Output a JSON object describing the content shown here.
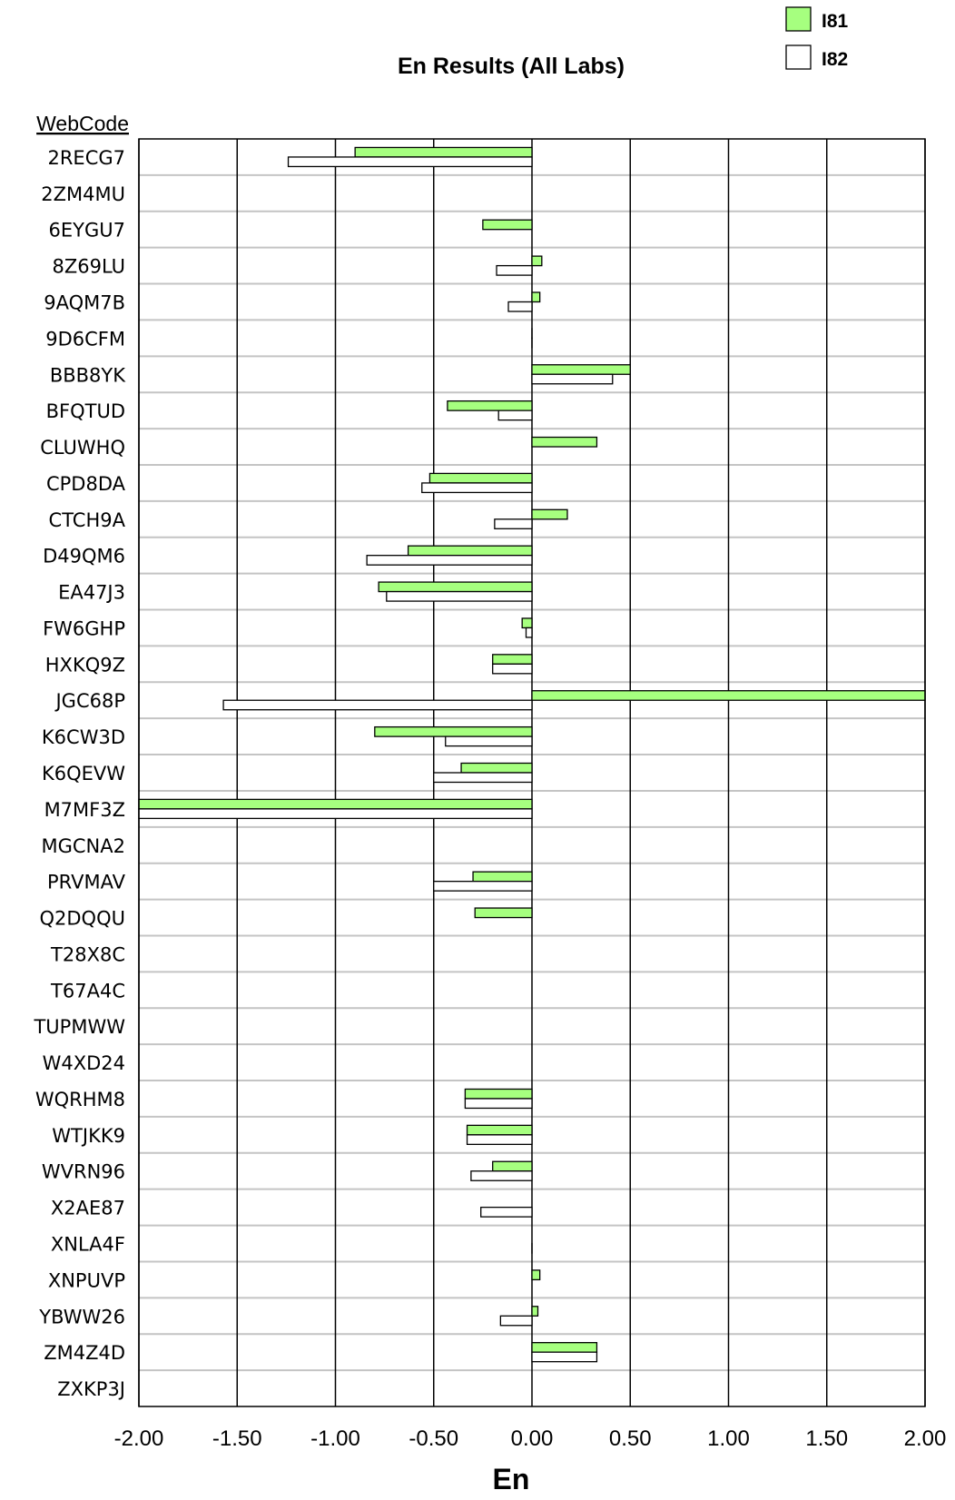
{
  "chart_data": {
    "type": "bar",
    "orientation": "horizontal",
    "title": "En Results (All Labs)",
    "xlabel": "En",
    "category_header": "WebCode",
    "xlim": [
      -2.0,
      2.0
    ],
    "xticks": [
      "-2.00",
      "-1.50",
      "-1.00",
      "-0.50",
      "0.00",
      "0.50",
      "1.00",
      "1.50",
      "2.00"
    ],
    "grid": true,
    "legend_position": "top-right",
    "categories": [
      "2RECG7",
      "2ZM4MU",
      "6EYGU7",
      "8Z69LU",
      "9AQM7B",
      "9D6CFM",
      "BBB8YK",
      "BFQTUD",
      "CLUWHQ",
      "CPD8DA",
      "CTCH9A",
      "D49QM6",
      "EA47J3",
      "FW6GHP",
      "HXKQ9Z",
      "JGC68P",
      "K6CW3D",
      "K6QEVW",
      "M7MF3Z",
      "MGCNA2",
      "PRVMAV",
      "Q2DQQU",
      "T28X8C",
      "T67A4C",
      "TUPMWW",
      "W4XD24",
      "WQRHM8",
      "WTJKK9",
      "WVRN96",
      "X2AE87",
      "XNLA4F",
      "XNPUVP",
      "YBWW26",
      "ZM4Z4D",
      "ZXKP3J"
    ],
    "series": [
      {
        "name": "I81",
        "color": "#a6ff7f",
        "values": [
          -0.9,
          null,
          -0.25,
          0.05,
          0.04,
          0.0,
          0.5,
          -0.43,
          0.33,
          -0.52,
          0.18,
          -0.63,
          -0.78,
          -0.05,
          -0.2,
          2.0,
          -0.8,
          -0.36,
          -2.0,
          null,
          -0.3,
          -0.29,
          null,
          null,
          null,
          null,
          -0.34,
          -0.33,
          -0.2,
          null,
          null,
          0.04,
          0.03,
          0.33,
          null
        ]
      },
      {
        "name": "I82",
        "color": "#ffffff",
        "values": [
          -1.24,
          null,
          null,
          -0.18,
          -0.12,
          0.0,
          0.41,
          -0.17,
          null,
          -0.56,
          -0.19,
          -0.84,
          -0.74,
          -0.03,
          -0.2,
          -1.57,
          -0.44,
          -0.5,
          -2.0,
          null,
          -0.5,
          null,
          null,
          null,
          null,
          null,
          -0.34,
          -0.33,
          -0.31,
          -0.26,
          0.0,
          null,
          -0.16,
          0.33,
          null
        ]
      }
    ]
  }
}
